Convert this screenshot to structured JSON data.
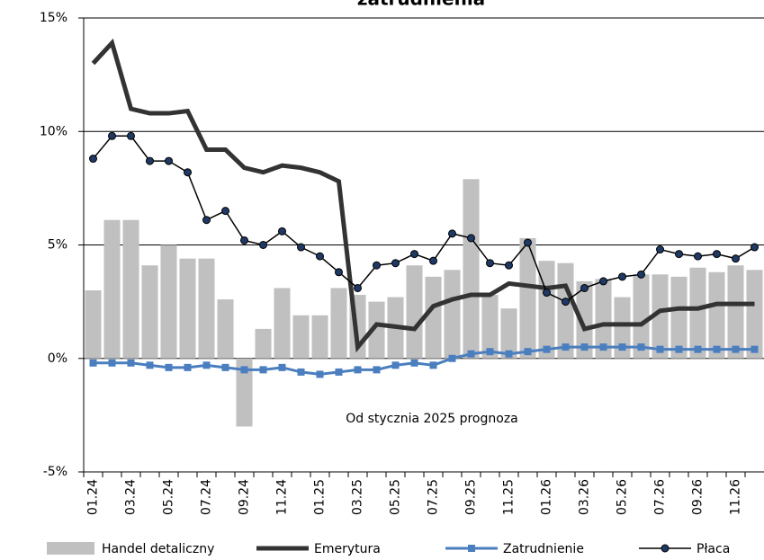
{
  "chart_data": {
    "type": "bar",
    "title": "zatrudnienia",
    "annotation": "Od stycznia 2025 prognoza",
    "categories": [
      "01.24",
      null,
      "03.24",
      null,
      "05.24",
      null,
      "07.24",
      null,
      "09.24",
      null,
      "11.24",
      null,
      "01.25",
      null,
      "03.25",
      null,
      "05.25",
      null,
      "07.25",
      null,
      "09.25",
      null,
      "11.25",
      null,
      "01.26",
      null,
      "03.26",
      null,
      "05.26",
      null,
      "07.26",
      null,
      "09.26",
      null,
      "11.26",
      null
    ],
    "series": [
      {
        "name": "Handel detaliczny",
        "type": "bar",
        "color": "#c0c0c0",
        "values": [
          3.0,
          6.1,
          6.1,
          4.1,
          5.0,
          4.4,
          4.4,
          2.6,
          -3.0,
          1.3,
          3.1,
          1.9,
          1.9,
          3.1,
          2.8,
          2.5,
          2.7,
          4.1,
          3.6,
          3.9,
          7.9,
          2.8,
          2.2,
          5.3,
          4.3,
          4.2,
          3.4,
          3.5,
          2.7,
          3.7,
          3.7,
          3.6,
          4.0,
          3.8,
          4.1,
          3.9
        ]
      },
      {
        "name": "Emerytura",
        "type": "line",
        "color": "#333333",
        "line_width": 5,
        "values": [
          13.0,
          13.9,
          11.0,
          10.8,
          10.8,
          10.9,
          9.2,
          9.2,
          8.4,
          8.2,
          8.5,
          8.4,
          8.2,
          7.8,
          0.5,
          1.5,
          1.4,
          1.3,
          2.3,
          2.6,
          2.8,
          2.8,
          3.3,
          3.2,
          3.1,
          3.2,
          1.3,
          1.5,
          1.5,
          1.5,
          2.1,
          2.2,
          2.2,
          2.4,
          2.4,
          2.4
        ]
      },
      {
        "name": "Zatrudnienie",
        "type": "line",
        "color": "#4a7ebf",
        "line_width": 3,
        "marker": "square",
        "values": [
          -0.2,
          -0.2,
          -0.2,
          -0.3,
          -0.4,
          -0.4,
          -0.3,
          -0.4,
          -0.5,
          -0.5,
          -0.4,
          -0.6,
          -0.7,
          -0.6,
          -0.5,
          -0.5,
          -0.3,
          -0.2,
          -0.3,
          0.0,
          0.2,
          0.3,
          0.2,
          0.3,
          0.4,
          0.5,
          0.5,
          0.5,
          0.5,
          0.5,
          0.4,
          0.4,
          0.4,
          0.4,
          0.4,
          0.4
        ]
      },
      {
        "name": "Płaca",
        "type": "line",
        "color": "#000000",
        "line_width": 1.5,
        "marker": "circle",
        "marker_color": "#1f3864",
        "values": [
          8.8,
          9.8,
          9.8,
          8.7,
          8.7,
          8.2,
          6.1,
          6.5,
          5.2,
          5.0,
          5.6,
          4.9,
          4.5,
          3.8,
          3.1,
          4.1,
          4.2,
          4.6,
          4.3,
          5.5,
          5.3,
          4.2,
          4.1,
          5.1,
          2.9,
          2.5,
          3.1,
          3.4,
          3.6,
          3.7,
          4.8,
          4.6,
          4.5,
          4.6,
          4.4,
          4.9
        ]
      }
    ],
    "ylim": [
      -5,
      15
    ],
    "yticks": [
      {
        "value": -5,
        "label": "-5%"
      },
      {
        "value": 0,
        "label": "0%"
      },
      {
        "value": 5,
        "label": "5%"
      },
      {
        "value": 10,
        "label": "10%"
      },
      {
        "value": 15,
        "label": "15%"
      }
    ],
    "grid": true,
    "legend": "bottom"
  }
}
